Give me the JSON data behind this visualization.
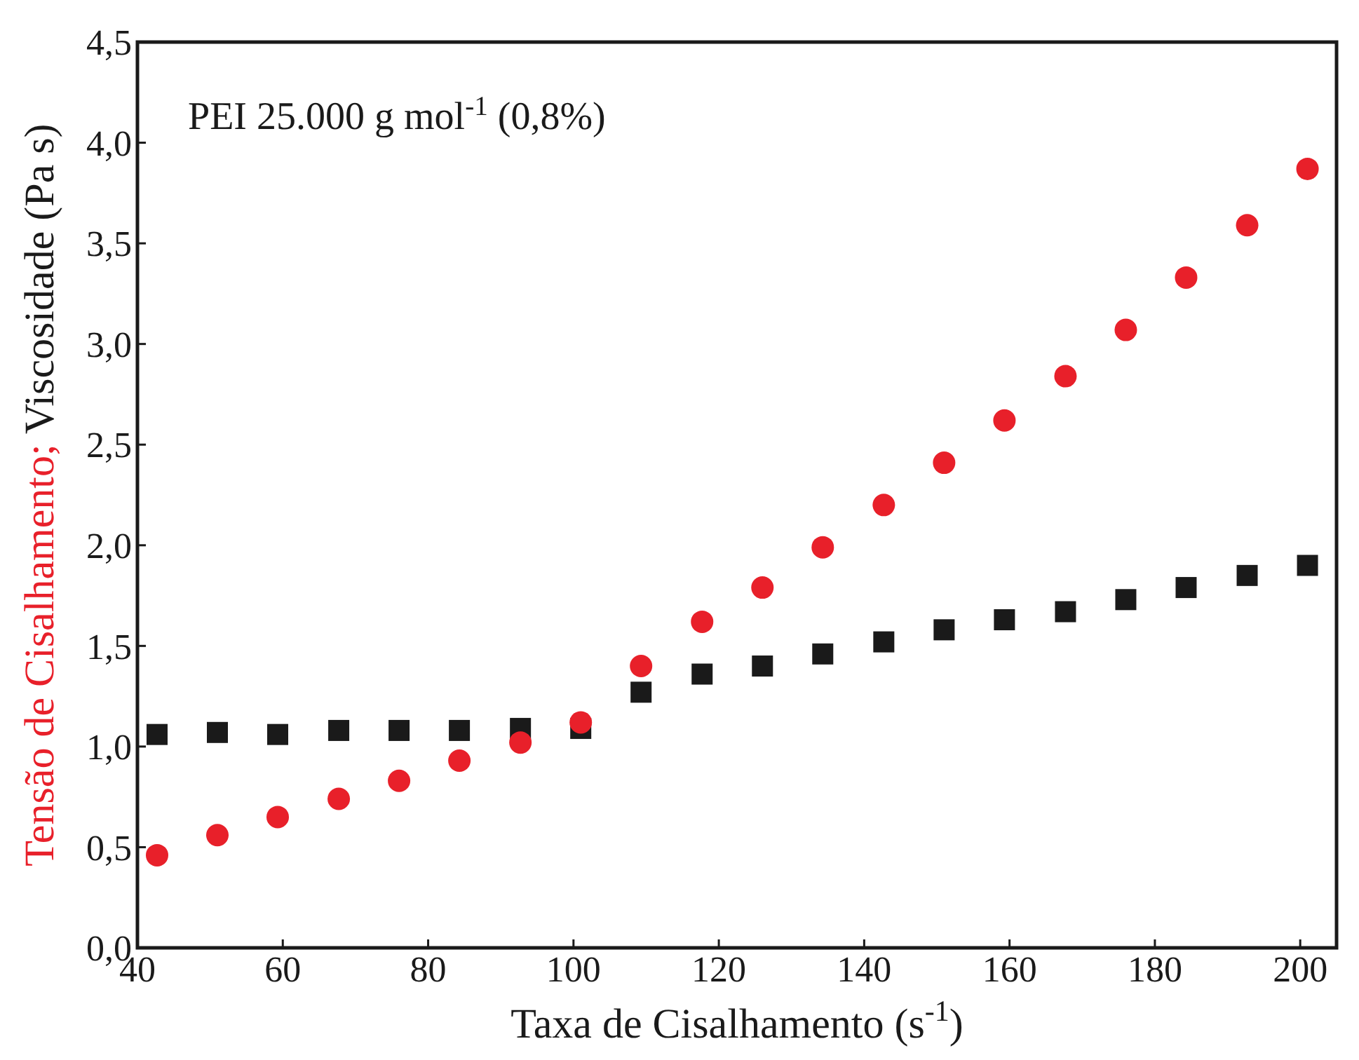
{
  "chart_data": {
    "type": "scatter",
    "title": "PEI 25.000 g mol$^{-1}$ (0,8%)",
    "xlabel": "Taxa de Cisalhamento (s$^{-1}$)",
    "xlim": [
      40,
      205
    ],
    "xticks": [
      40,
      60,
      80,
      100,
      120,
      140,
      160,
      180,
      200
    ],
    "ylim": [
      0,
      4.5
    ],
    "yticks": [
      {
        "value": 0,
        "label": "0,0"
      },
      {
        "value": 0.5,
        "label": "0,5"
      },
      {
        "value": 1,
        "label": "1,0"
      },
      {
        "value": 1.5,
        "label": "1,5"
      },
      {
        "value": 2,
        "label": "2,0"
      },
      {
        "value": 2.5,
        "label": "2,5"
      },
      {
        "value": 3,
        "label": "3,0"
      },
      {
        "value": 3.5,
        "label": "3,5"
      },
      {
        "value": 4,
        "label": "4,0"
      },
      {
        "value": 4.5,
        "label": "4,5"
      }
    ],
    "x": [
      42.7,
      51,
      59.3,
      67.7,
      76,
      84.3,
      92.7,
      101,
      109.3,
      117.7,
      126,
      134.3,
      142.7,
      151,
      159.3,
      167.7,
      176,
      184.3,
      192.7,
      201
    ],
    "grid": false,
    "series": [
      {
        "name": "Tensão de Cisalhamento;",
        "color": "#e8202a",
        "marker": "circle",
        "values": [
          0.46,
          0.56,
          0.65,
          0.74,
          0.83,
          0.93,
          1.02,
          1.12,
          1.4,
          1.62,
          1.79,
          1.99,
          2.2,
          2.41,
          2.62,
          2.84,
          3.07,
          3.33,
          3.59,
          3.87
        ]
      },
      {
        "name": "Viscosidade (Pa s)",
        "color": "#1a1a1a",
        "marker": "square",
        "values": [
          1.06,
          1.07,
          1.06,
          1.08,
          1.08,
          1.08,
          1.09,
          1.09,
          1.27,
          1.36,
          1.4,
          1.46,
          1.52,
          1.58,
          1.63,
          1.67,
          1.73,
          1.79,
          1.85,
          1.9
        ]
      }
    ]
  }
}
